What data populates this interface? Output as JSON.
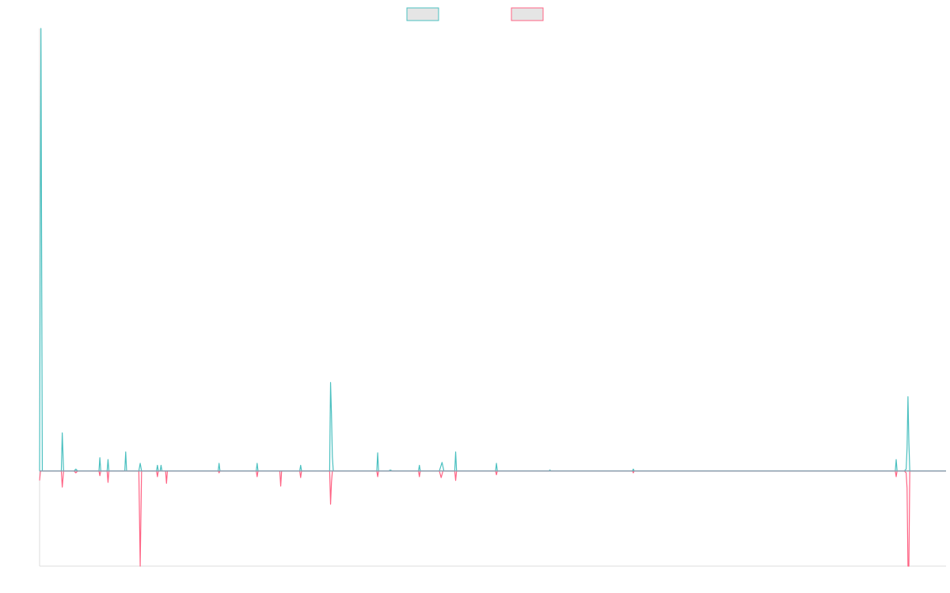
{
  "chart_data": {
    "type": "line",
    "title": "",
    "xlabel": "",
    "ylabel": "",
    "legend": "top-center",
    "grid": false,
    "x_range": [
      0,
      1000
    ],
    "ylim": [
      -100,
      465
    ],
    "series": [
      {
        "name": "",
        "color": "#4bc0c0",
        "legend_fill": "#e5e5e5",
        "points": [
          [
            0,
            0
          ],
          [
            1.5,
            465
          ],
          [
            3,
            0
          ],
          [
            24,
            0
          ],
          [
            25,
            40
          ],
          [
            26.5,
            0
          ],
          [
            38,
            0
          ],
          [
            40,
            2
          ],
          [
            42,
            0
          ],
          [
            65.5,
            0
          ],
          [
            66.5,
            14
          ],
          [
            67.5,
            0
          ],
          [
            74.5,
            0
          ],
          [
            75.5,
            12
          ],
          [
            76.5,
            0
          ],
          [
            94,
            0
          ],
          [
            95,
            20
          ],
          [
            96,
            0
          ],
          [
            109.5,
            0
          ],
          [
            111,
            8
          ],
          [
            112.5,
            0
          ],
          [
            129,
            0
          ],
          [
            130,
            6
          ],
          [
            131,
            0
          ],
          [
            133,
            0
          ],
          [
            134,
            6
          ],
          [
            135,
            0
          ],
          [
            197,
            0
          ],
          [
            198,
            8
          ],
          [
            199,
            0
          ],
          [
            239,
            0
          ],
          [
            240,
            8
          ],
          [
            241,
            0
          ],
          [
            287,
            0
          ],
          [
            288,
            6
          ],
          [
            289,
            0
          ],
          [
            320,
            0
          ],
          [
            320.5,
            50
          ],
          [
            321,
            93
          ],
          [
            322,
            60
          ],
          [
            323,
            15
          ],
          [
            324,
            0
          ],
          [
            372,
            0
          ],
          [
            373,
            19
          ],
          [
            374,
            0
          ],
          [
            385,
            0
          ],
          [
            387,
            1
          ],
          [
            389,
            0
          ],
          [
            418,
            0
          ],
          [
            419,
            6
          ],
          [
            420,
            0
          ],
          [
            441,
            0
          ],
          [
            443,
            6
          ],
          [
            444,
            9
          ],
          [
            446,
            0
          ],
          [
            458,
            0
          ],
          [
            459,
            20
          ],
          [
            460,
            0
          ],
          [
            503,
            0
          ],
          [
            504,
            8
          ],
          [
            505,
            0
          ],
          [
            562,
            0
          ],
          [
            563,
            1
          ],
          [
            564,
            0
          ],
          [
            654,
            0
          ],
          [
            655,
            2
          ],
          [
            656,
            0
          ],
          [
            944,
            0
          ],
          [
            945,
            12
          ],
          [
            946,
            0
          ],
          [
            954,
            0
          ],
          [
            956,
            2
          ],
          [
            957,
            24
          ],
          [
            958,
            78
          ],
          [
            959,
            30
          ],
          [
            960,
            0
          ],
          [
            1000,
            0
          ]
        ]
      },
      {
        "name": "",
        "color": "#ff6384",
        "legend_fill": "#e5e5e5",
        "points": [
          [
            0,
            -10
          ],
          [
            1,
            0
          ],
          [
            24,
            0
          ],
          [
            25,
            -17
          ],
          [
            26.5,
            0
          ],
          [
            38,
            0
          ],
          [
            40,
            -2
          ],
          [
            42,
            0
          ],
          [
            65.5,
            0
          ],
          [
            66.5,
            -5
          ],
          [
            67.5,
            0
          ],
          [
            74.5,
            0
          ],
          [
            75.5,
            -12
          ],
          [
            76.5,
            0
          ],
          [
            109.5,
            0
          ],
          [
            111,
            -100
          ],
          [
            112.5,
            0
          ],
          [
            129,
            0
          ],
          [
            130,
            -6
          ],
          [
            131,
            0
          ],
          [
            139,
            0
          ],
          [
            140,
            -13
          ],
          [
            141,
            0
          ],
          [
            197,
            0
          ],
          [
            198,
            -2
          ],
          [
            199,
            0
          ],
          [
            239,
            0
          ],
          [
            240,
            -6
          ],
          [
            241,
            0
          ],
          [
            265,
            0
          ],
          [
            266,
            -16
          ],
          [
            267,
            0
          ],
          [
            287,
            0
          ],
          [
            288,
            -7
          ],
          [
            289,
            0
          ],
          [
            320,
            0
          ],
          [
            321,
            -35
          ],
          [
            322,
            -12
          ],
          [
            323,
            0
          ],
          [
            372,
            0
          ],
          [
            373,
            -6
          ],
          [
            374,
            0
          ],
          [
            418,
            0
          ],
          [
            419,
            -6
          ],
          [
            420,
            0
          ],
          [
            441,
            0
          ],
          [
            443,
            -7
          ],
          [
            445,
            0
          ],
          [
            458,
            0
          ],
          [
            459,
            -10
          ],
          [
            460,
            0
          ],
          [
            503,
            0
          ],
          [
            504,
            -4
          ],
          [
            505,
            0
          ],
          [
            654,
            0
          ],
          [
            655,
            -2
          ],
          [
            656,
            0
          ],
          [
            944,
            0
          ],
          [
            945,
            -6
          ],
          [
            946,
            0
          ],
          [
            954,
            0
          ],
          [
            956,
            -2
          ],
          [
            957,
            -18
          ],
          [
            958,
            -100
          ],
          [
            959,
            -100
          ],
          [
            960,
            0
          ],
          [
            1000,
            0
          ]
        ]
      }
    ]
  }
}
